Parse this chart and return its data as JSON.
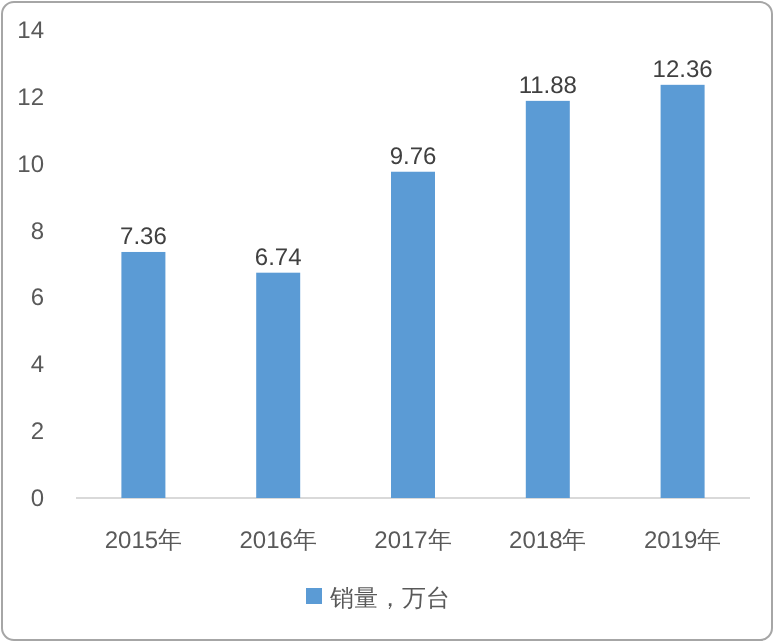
{
  "chart_data": {
    "type": "bar",
    "categories": [
      "2015年",
      "2016年",
      "2017年",
      "2018年",
      "2019年"
    ],
    "series": [
      {
        "name": "销量，万台",
        "color": "#5b9bd5",
        "values": [
          7.36,
          6.74,
          9.76,
          11.88,
          12.36
        ]
      }
    ],
    "ylim": [
      0,
      14
    ],
    "yticks": [
      0,
      2,
      4,
      6,
      8,
      10,
      12,
      14
    ],
    "data_labels": true,
    "legend": "bottom",
    "grid": false
  }
}
